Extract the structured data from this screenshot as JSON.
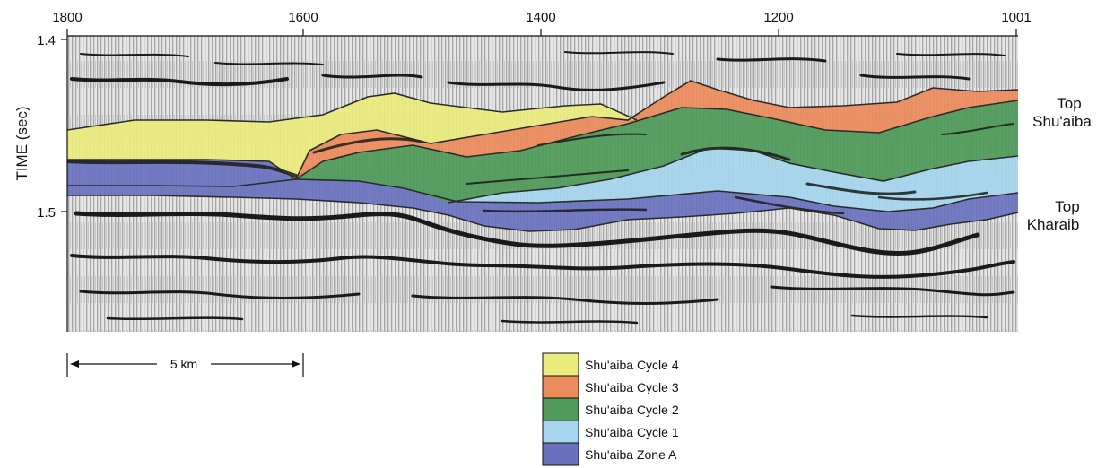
{
  "x_axis": {
    "tick_labels": [
      "1800",
      "1600",
      "1400",
      "1200",
      "1001"
    ]
  },
  "y_axis": {
    "label": "TIME (sec)",
    "tick_labels": [
      "1.4",
      "1.5"
    ]
  },
  "horizons": {
    "top_shuaiba": [
      "Top",
      "Shu'aiba"
    ],
    "top_kharaib": [
      "Top",
      "Kharaib"
    ]
  },
  "scale_bar": {
    "label": "5 km"
  },
  "legend": {
    "items": [
      {
        "label": "Shu'aiba Cycle 4",
        "color": "#ecec7e"
      },
      {
        "label": "Shu'aiba Cycle 3",
        "color": "#ec8b5c"
      },
      {
        "label": "Shu'aiba Cycle 2",
        "color": "#4f9a5a"
      },
      {
        "label": "Shu'aiba Cycle 1",
        "color": "#a6d6ee"
      },
      {
        "label": "Shu'aiba Zone A",
        "color": "#6a72c0"
      }
    ]
  },
  "colors": {
    "seismic_background": "#d8d8d8",
    "reflector": "#1a1a1a",
    "boundary": "#2a2a2a"
  }
}
